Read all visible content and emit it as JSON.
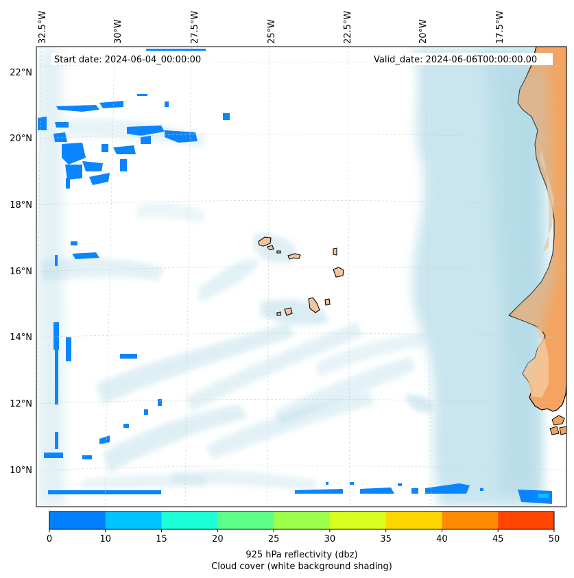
{
  "header": {
    "start_date": "Start date: 2024-06-04_00:00:00",
    "valid_date": "Valid_date: 2024-06-06T00:00:00.00"
  },
  "map": {
    "lon_labels": [
      "32.5°W",
      "30°W",
      "27.5°W",
      "25°W",
      "22.5°W",
      "20°W",
      "17.5°W"
    ],
    "lat_labels": [
      "22°N",
      "20°N",
      "18°N",
      "16°N",
      "14°N",
      "12°N",
      "10°N"
    ],
    "colors": {
      "land": "#f4a460",
      "land_light": "#f6c89a",
      "cloud": "#add8e6",
      "reflectivity_low": "#0a7fff"
    }
  },
  "colorbar": {
    "ticks": [
      "0",
      "10",
      "15",
      "20",
      "25",
      "30",
      "35",
      "40",
      "45",
      "50"
    ],
    "colors": [
      "#0080ff",
      "#00c4ff",
      "#1dffd8",
      "#5dff8a",
      "#9cff4a",
      "#d8ff1e",
      "#ffd700",
      "#ff8c00",
      "#ff4500"
    ],
    "label_line1": "925 hPa reflectivity (dbz)",
    "label_line2": "Cloud cover (white background shading)"
  }
}
